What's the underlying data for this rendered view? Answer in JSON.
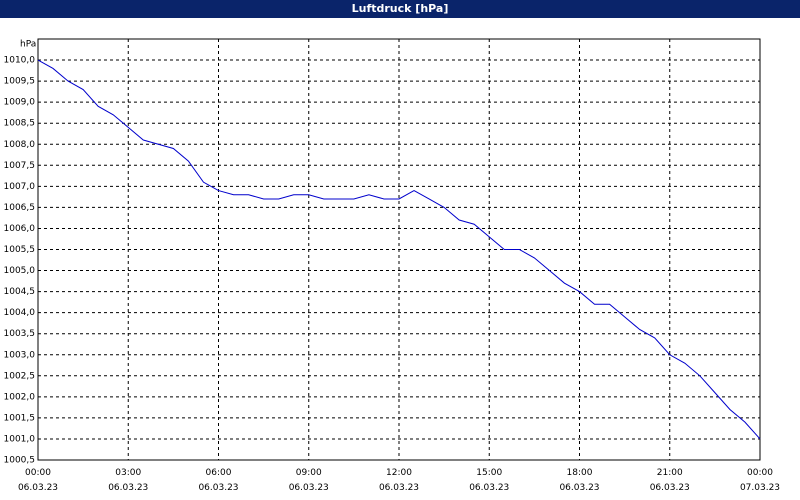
{
  "chart_data": {
    "type": "line",
    "title": "Luftdruck [hPa]",
    "y_label": "hPa",
    "x": [
      0,
      0.5,
      1,
      1.5,
      2,
      2.5,
      3,
      3.5,
      4,
      4.5,
      5,
      5.5,
      6,
      6.5,
      7,
      7.5,
      8,
      8.5,
      9,
      9.5,
      10,
      10.5,
      11,
      11.5,
      12,
      12.5,
      13,
      13.5,
      14,
      14.5,
      15,
      15.5,
      16,
      16.5,
      17,
      17.5,
      18,
      18.5,
      19,
      19.5,
      20,
      20.5,
      21,
      21.5,
      22,
      22.5,
      23,
      23.5,
      24
    ],
    "series": [
      {
        "color": "#0000cc",
        "values": [
          1010.0,
          1009.8,
          1009.5,
          1009.3,
          1008.9,
          1008.7,
          1008.4,
          1008.1,
          1008.0,
          1007.9,
          1007.6,
          1007.1,
          1006.9,
          1006.8,
          1006.8,
          1006.7,
          1006.7,
          1006.8,
          1006.8,
          1006.7,
          1006.7,
          1006.7,
          1006.8,
          1006.7,
          1006.7,
          1006.9,
          1006.7,
          1006.5,
          1006.2,
          1006.1,
          1005.8,
          1005.5,
          1005.5,
          1005.3,
          1005.0,
          1004.7,
          1004.5,
          1004.2,
          1004.2,
          1003.9,
          1003.6,
          1003.4,
          1003.0,
          1002.8,
          1002.5,
          1002.1,
          1001.7,
          1001.4,
          1001.0
        ]
      }
    ],
    "xlim": [
      0,
      24
    ],
    "xticks": [
      {
        "value": 0,
        "label": "00:00 06.03.23"
      },
      {
        "value": 3,
        "label": "03:00 06.03.23"
      },
      {
        "value": 6,
        "label": "06:00 06.03.23"
      },
      {
        "value": 9,
        "label": "09:00 06.03.23"
      },
      {
        "value": 12,
        "label": "12:00 06.03.23"
      },
      {
        "value": 15,
        "label": "15:00 06.03.23"
      },
      {
        "value": 18,
        "label": "18:00 06.03.23"
      },
      {
        "value": 21,
        "label": "21:00 06.03.23"
      },
      {
        "value": 24,
        "label": "00:00 07.03.23"
      }
    ],
    "ylim": [
      1000.5,
      1010.5
    ],
    "yticks": [
      {
        "value": 1000.5,
        "label": "1000,5"
      },
      {
        "value": 1001,
        "label": "1001,0"
      },
      {
        "value": 1001.5,
        "label": "1001,5"
      },
      {
        "value": 1002,
        "label": "1002,0"
      },
      {
        "value": 1002.5,
        "label": "1002,5"
      },
      {
        "value": 1003,
        "label": "1003,0"
      },
      {
        "value": 1003.5,
        "label": "1003,5"
      },
      {
        "value": 1004,
        "label": "1004,0"
      },
      {
        "value": 1004.5,
        "label": "1004,5"
      },
      {
        "value": 1005,
        "label": "1005,0"
      },
      {
        "value": 1005.5,
        "label": "1005,5"
      },
      {
        "value": 1006,
        "label": "1006,0"
      },
      {
        "value": 1006.5,
        "label": "1006,5"
      },
      {
        "value": 1007,
        "label": "1007,0"
      },
      {
        "value": 1007.5,
        "label": "1007,5"
      },
      {
        "value": 1008,
        "label": "1008,0"
      },
      {
        "value": 1008.5,
        "label": "1008,5"
      },
      {
        "value": 1009,
        "label": "1009,0"
      },
      {
        "value": 1009.5,
        "label": "1009,5"
      },
      {
        "value": 1010,
        "label": "1010,0"
      }
    ],
    "grid": true
  }
}
